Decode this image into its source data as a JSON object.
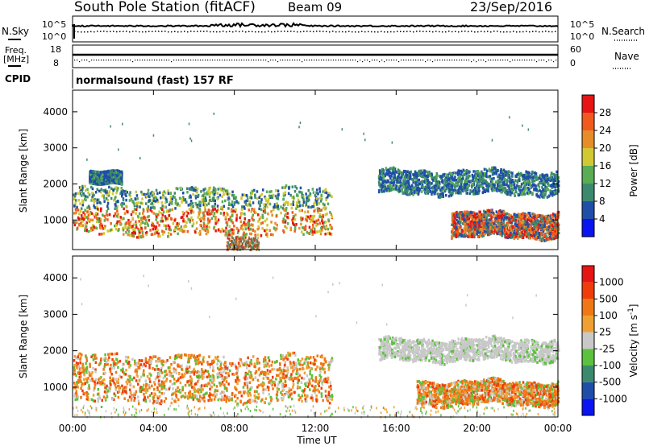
{
  "header": {
    "station": "South Pole Station (fitACF)",
    "beam": "Beam 09",
    "date": "23/Sep/2016"
  },
  "status_panels": {
    "nsky_label": "N.Sky",
    "nsky_ticks": [
      "10^5",
      "10^0"
    ],
    "nsearch_label": "N.Search",
    "nsearch_ticks": [
      "10^5",
      "10^0"
    ],
    "freq_label_line1": "Freq.",
    "freq_label_line2": "[MHz]",
    "freq_ticks": [
      "18",
      "8"
    ],
    "nave_label": "Nave",
    "nave_ticks": [
      "60",
      "0"
    ],
    "cpid_label": "CPID",
    "cpid_text": "normalsound (fast) 157 RF"
  },
  "chart_data": [
    {
      "type": "heatmap",
      "panel": "power",
      "ylabel": "Slant Range [km]",
      "yticks": [
        1000,
        2000,
        3000,
        4000
      ],
      "ylim": [
        180,
        4600
      ],
      "xlim": [
        "00:00",
        "24:00"
      ],
      "colorbar_label": "Power [dB]",
      "colorbar_ticks": [
        "28",
        "24",
        "20",
        "16",
        "12",
        "8",
        "4"
      ],
      "colorbar_colors": [
        "#0a14f0",
        "#1e4ea8",
        "#3c8a6e",
        "#5aac55",
        "#d2c832",
        "#e68c28",
        "#f05a1e",
        "#e61414"
      ],
      "scatter_bands": [
        {
          "t_start": 0.0,
          "t_end": 12.8,
          "r_low": 620,
          "r_high": 1900,
          "profile": "main-echo"
        },
        {
          "t_start": 0.8,
          "t_end": 2.4,
          "r_low": 2000,
          "r_high": 2350,
          "profile": "weak-far"
        },
        {
          "t_start": 15.1,
          "t_end": 24.0,
          "r_low": 1750,
          "r_high": 2400,
          "profile": "weak-far"
        },
        {
          "t_start": 18.7,
          "t_end": 24.0,
          "r_low": 550,
          "r_high": 1250,
          "profile": "late-echo"
        },
        {
          "t_start": 7.6,
          "t_end": 9.2,
          "r_low": 200,
          "r_high": 550,
          "profile": "ground"
        }
      ]
    },
    {
      "type": "heatmap",
      "panel": "velocity",
      "ylabel": "Slant Range [km]",
      "yticks": [
        1000,
        2000,
        3000,
        4000
      ],
      "ylim": [
        180,
        4600
      ],
      "xlim": [
        "00:00",
        "24:00"
      ],
      "xticks": [
        "00:00",
        "04:00",
        "08:00",
        "12:00",
        "16:00",
        "20:00",
        "00:00"
      ],
      "xlabel": "Time UT",
      "colorbar_label": "Velocity [m s",
      "colorbar_label_sup": "-1",
      "colorbar_label_close": "]",
      "colorbar_ticks": [
        "1000",
        "500",
        "100",
        "25",
        "-25",
        "-100",
        "-500",
        "-1000"
      ],
      "colorbar_colors": [
        "#0a14f0",
        "#1e4ea8",
        "#3c8a6e",
        "#5ac23c",
        "#c8c8c8",
        "#f0a032",
        "#f07814",
        "#f03c0a",
        "#e61414"
      ],
      "scatter_bands": [
        {
          "t_start": 0.0,
          "t_end": 12.8,
          "r_low": 620,
          "r_high": 1900,
          "profile": "westward"
        },
        {
          "t_start": 15.1,
          "t_end": 24.0,
          "r_low": 1750,
          "r_high": 2350,
          "profile": "near-zero"
        },
        {
          "t_start": 17.0,
          "t_end": 24.0,
          "r_low": 550,
          "r_high": 1200,
          "profile": "westward"
        },
        {
          "t_start": 0.0,
          "t_end": 24.0,
          "r_low": 200,
          "r_high": 520,
          "profile": "ground"
        }
      ]
    }
  ]
}
